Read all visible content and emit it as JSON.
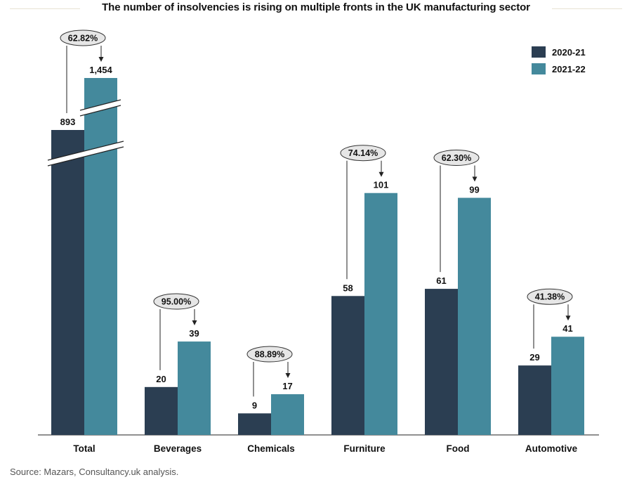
{
  "chart_data": {
    "type": "bar",
    "title": "The number of insolvencies is rising on multiple fronts in the UK manufacturing sector",
    "categories": [
      "Total",
      "Beverages",
      "Chemicals",
      "Furniture",
      "Food",
      "Automotive"
    ],
    "series": [
      {
        "name": "2020-21",
        "values": [
          893,
          20,
          9,
          58,
          61,
          29
        ],
        "labels": [
          "893",
          "20",
          "9",
          "58",
          "61",
          "29"
        ]
      },
      {
        "name": "2021-22",
        "values": [
          1454,
          39,
          17,
          101,
          99,
          41
        ],
        "labels": [
          "1,454",
          "39",
          "17",
          "101",
          "99",
          "41"
        ]
      }
    ],
    "growth_labels": [
      "62.82%",
      "95.00%",
      "88.89%",
      "74.14%",
      "62.30%",
      "41.38%"
    ],
    "axis_break": {
      "category": "Total",
      "note": "Total bars are shown with a broken axis"
    },
    "ylim": [
      0,
      115
    ],
    "legend_position": "top-right",
    "grid": false,
    "colors": {
      "2020-21": "#2b3e52",
      "2021-22": "#44899c",
      "callout_fill": "#e6e6e6"
    }
  },
  "source": "Source: Mazars, Consultancy.uk analysis."
}
